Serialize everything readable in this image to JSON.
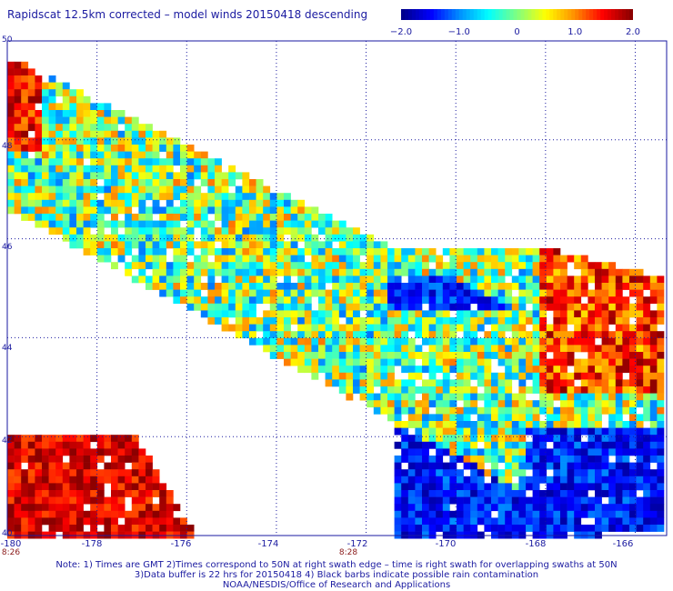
{
  "title": "Rapidscat 12.5km corrected – model winds 20150418 descending",
  "colorbar": {
    "ticks": [
      "−2.0",
      "−1.0",
      "0",
      "1.0",
      "2.0"
    ],
    "tick_values": [
      -2.0,
      -1.0,
      0,
      1.0,
      2.0
    ],
    "range": [
      -2.0,
      2.0
    ],
    "colors": [
      "#00008c",
      "#0000ff",
      "#0090ff",
      "#00ffff",
      "#80ff80",
      "#ffff00",
      "#ff9000",
      "#ff0000",
      "#8c0000"
    ]
  },
  "map": {
    "lat_labels": [
      "50",
      "48",
      "46",
      "44",
      "42",
      "40"
    ],
    "lat_values": [
      50,
      48,
      46,
      44,
      42,
      40
    ],
    "lon_labels": [
      "-180",
      "-178",
      "-176",
      "-174",
      "-172",
      "-170",
      "-168",
      "-166"
    ],
    "lon_values": [
      -180,
      -178,
      -176,
      -174,
      -172,
      -170,
      -168,
      -166
    ],
    "time_labels": [
      "8:26",
      "8:28"
    ],
    "time_lons": [
      -180,
      -172
    ],
    "lat_range": [
      40,
      50
    ],
    "lon_range": [
      -180,
      -165.3
    ],
    "gridlines": "dotted",
    "grid_color": "#1a1aa0"
  },
  "notes": [
    "Note: 1) Times are GMT 2)Times correspond to 50N at right swath edge – time is right swath for overlapping swaths at 50N",
    "3)Data buffer is 22 hrs for 20150418 4) Black barbs indicate possible rain contamination",
    "NOAA/NESDIS/Office of Research and Applications"
  ]
}
